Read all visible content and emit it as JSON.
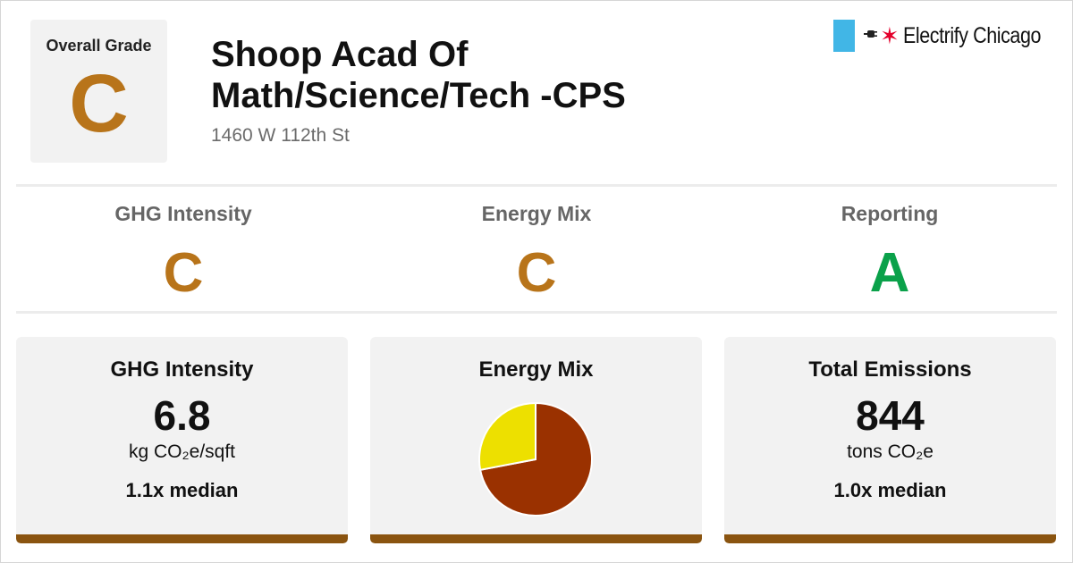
{
  "overall": {
    "label": "Overall Grade",
    "grade": "C",
    "grade_color": "#b8741a"
  },
  "building": {
    "name": "Shoop Acad Of Math/Science/Tech -CPS",
    "address": "1460 W 112th St"
  },
  "brand": {
    "name": "Electrify Chicago",
    "flag_color": "#41b6e6",
    "star_color": "#e4002b",
    "icons": [
      "plug-icon",
      "star-icon"
    ]
  },
  "subgrades": [
    {
      "label": "GHG Intensity",
      "grade": "C",
      "color": "#b8741a"
    },
    {
      "label": "Energy Mix",
      "grade": "C",
      "color": "#b8741a"
    },
    {
      "label": "Reporting",
      "grade": "A",
      "color": "#0aa14a"
    }
  ],
  "cards": {
    "ghg": {
      "title": "GHG Intensity",
      "value": "6.8",
      "unit": "kg CO₂e/sqft",
      "median": "1.1x median"
    },
    "mix": {
      "title": "Energy Mix"
    },
    "emissions": {
      "title": "Total Emissions",
      "value": "844",
      "unit": "tons CO₂e",
      "median": "1.0x median"
    },
    "bar_color": "#8a5410"
  },
  "chart_data": {
    "type": "pie",
    "title": "Energy Mix",
    "slices": [
      {
        "value": 0.72,
        "color": "#9a3100"
      },
      {
        "value": 0.28,
        "color": "#ede000"
      }
    ]
  }
}
